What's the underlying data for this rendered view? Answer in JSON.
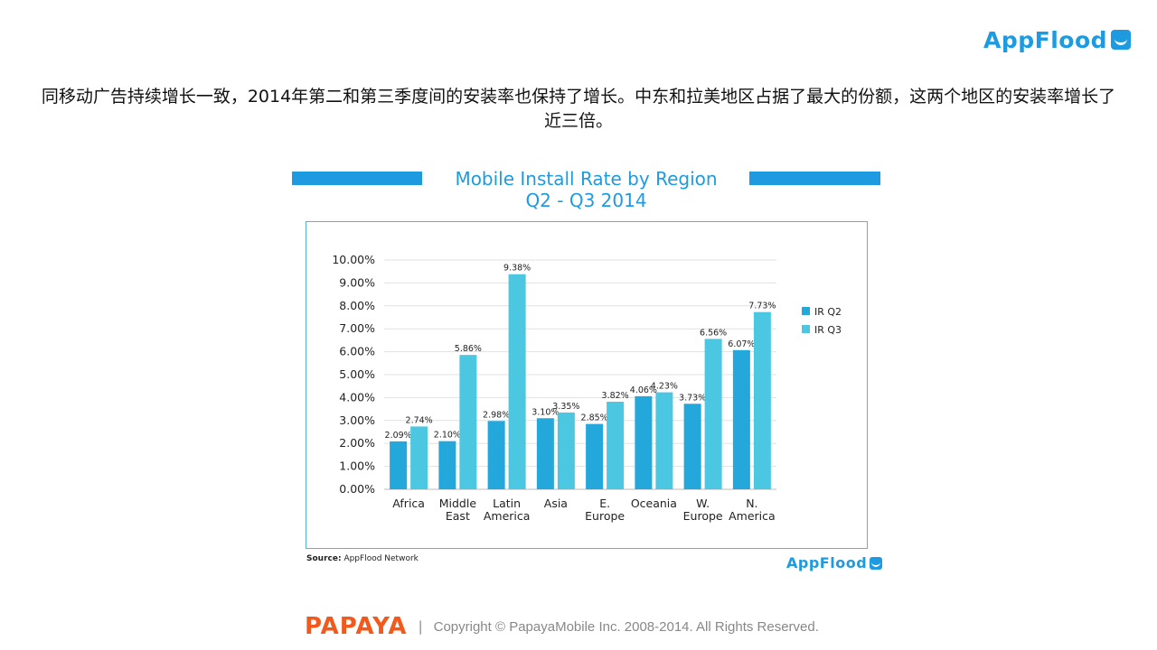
{
  "brand": {
    "name": "AppFlood",
    "icon": "wave-box-icon"
  },
  "headline": "同移动广告持续增长一致，2014年第二和第三季度间的安装率也保持了增长。中东和拉美地区占据了最大的份额，这两个地区的安装率增长了近三倍。",
  "source": {
    "label": "Source:",
    "text": "AppFlood Network"
  },
  "footer": {
    "logo": "PAPAYA",
    "separator": "|",
    "copyright": "Copyright © PapayaMobile Inc. 2008-2014. All Rights Reserved."
  },
  "colors": {
    "accent": "#1e9be0",
    "q2": "#24a8dc",
    "q3": "#4cc7e1",
    "papaya": "#f25a1d"
  },
  "chart_data": {
    "type": "bar",
    "title": "Mobile Install Rate by Region",
    "subtitle": "Q2 - Q3 2014",
    "categories": [
      [
        "Africa"
      ],
      [
        "Middle",
        "East"
      ],
      [
        "Latin",
        "America"
      ],
      [
        "Asia"
      ],
      [
        "E.",
        "Europe"
      ],
      [
        "Oceania"
      ],
      [
        "W.",
        "Europe"
      ],
      [
        "N.",
        "America"
      ]
    ],
    "series": [
      {
        "name": "IR Q2",
        "values": [
          2.09,
          2.1,
          2.98,
          3.1,
          2.85,
          4.06,
          3.73,
          6.07
        ],
        "labels": [
          "2.09%",
          "2.10%",
          "2.98%",
          "3.10%",
          "2.85%",
          "4.06%",
          "3.73%",
          "6.07%"
        ]
      },
      {
        "name": "IR Q3",
        "values": [
          2.74,
          5.86,
          9.38,
          3.35,
          3.82,
          4.23,
          6.56,
          7.73
        ],
        "labels": [
          "2.74%",
          "5.86%",
          "9.38%",
          "3.35%",
          "3.82%",
          "4.23%",
          "6.56%",
          "7.73%"
        ]
      }
    ],
    "ylim": [
      0,
      10
    ],
    "yticks": [
      "0.00%",
      "1.00%",
      "2.00%",
      "3.00%",
      "4.00%",
      "5.00%",
      "6.00%",
      "7.00%",
      "8.00%",
      "9.00%",
      "10.00%"
    ],
    "grid": true,
    "legend": "right"
  }
}
